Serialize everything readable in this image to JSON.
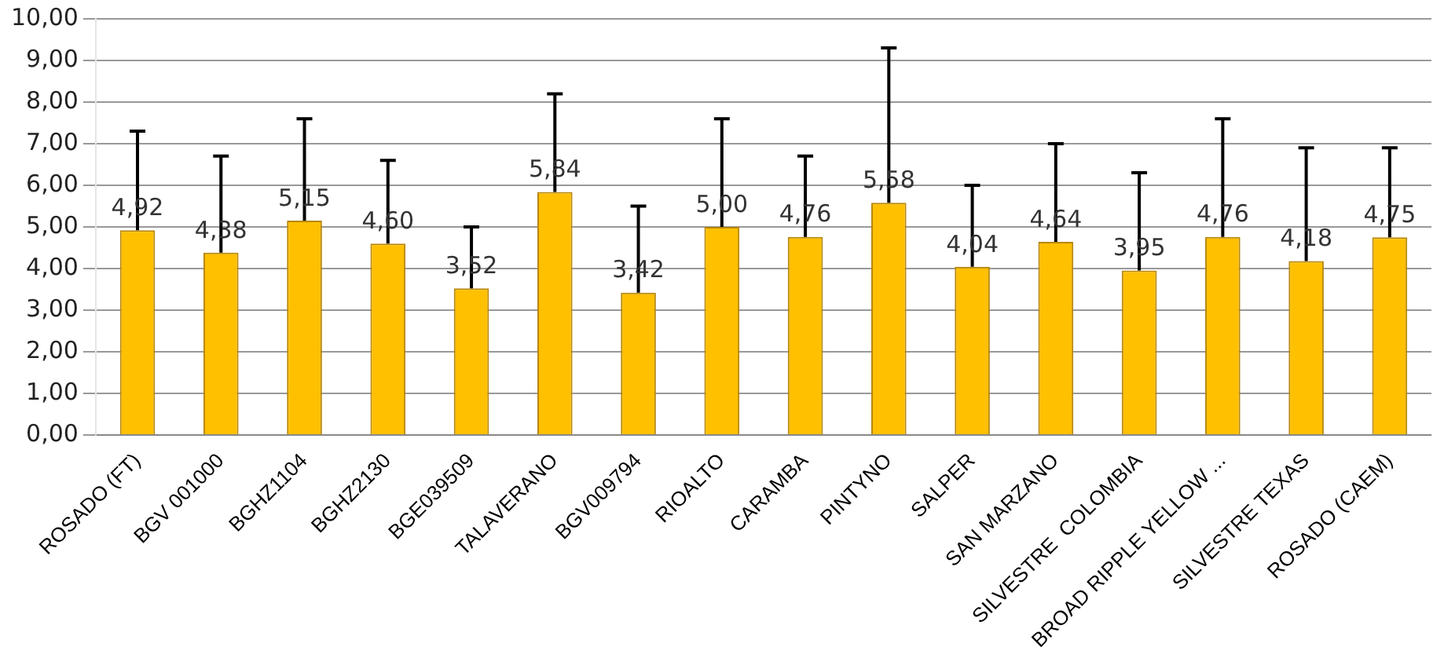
{
  "chart_data": {
    "type": "bar",
    "categories": [
      "ROSADO (FT)",
      "BGV 001000",
      "BGHZ1104",
      "BGHZ2130",
      "BGE039509",
      "TALAVERANO",
      "BGV009794",
      "RIOALTO",
      "CARAMBA",
      "PINTYNO",
      "SALPER",
      "SAN MARZANO",
      "SILVESTRE  COLOMBIA",
      "BROAD RIPPLE YELLOW ...",
      "SILVESTRE TEXAS",
      "ROSADO (CAEM)"
    ],
    "values": [
      4.92,
      4.38,
      5.15,
      4.6,
      3.52,
      5.84,
      3.42,
      5.0,
      4.76,
      5.58,
      4.04,
      4.64,
      3.95,
      4.76,
      4.18,
      4.75
    ],
    "value_labels": [
      "4,92",
      "4,38",
      "5,15",
      "4,60",
      "3,52",
      "5,84",
      "3,42",
      "5,00",
      "4,76",
      "5,58",
      "4,04",
      "4,64",
      "3,95",
      "4,76",
      "4,18",
      "4,75"
    ],
    "errors": [
      [
        4.92,
        7.3
      ],
      [
        4.38,
        6.7
      ],
      [
        5.15,
        7.6
      ],
      [
        4.6,
        6.6
      ],
      [
        3.52,
        5.0
      ],
      [
        5.84,
        8.2
      ],
      [
        3.42,
        5.5
      ],
      [
        5.0,
        7.6
      ],
      [
        4.76,
        6.7
      ],
      [
        5.58,
        9.3
      ],
      [
        4.04,
        6.0
      ],
      [
        4.64,
        7.0
      ],
      [
        3.95,
        6.3
      ],
      [
        4.76,
        7.6
      ],
      [
        4.18,
        6.9
      ],
      [
        4.75,
        6.9
      ]
    ],
    "color": "#ffc000",
    "ylim": [
      0,
      10
    ],
    "yticks": [
      {
        "value": 0,
        "label": "0,00"
      },
      {
        "value": 1,
        "label": "1,00"
      },
      {
        "value": 2,
        "label": "2,00"
      },
      {
        "value": 3,
        "label": "3,00"
      },
      {
        "value": 4,
        "label": "4,00"
      },
      {
        "value": 5,
        "label": "5,00"
      },
      {
        "value": 6,
        "label": "6,00"
      },
      {
        "value": 7,
        "label": "7,00"
      },
      {
        "value": 8,
        "label": "8,00"
      },
      {
        "value": 9,
        "label": "9,00"
      },
      {
        "value": 10,
        "label": "10,00"
      }
    ],
    "grid": "y",
    "legend": false
  }
}
